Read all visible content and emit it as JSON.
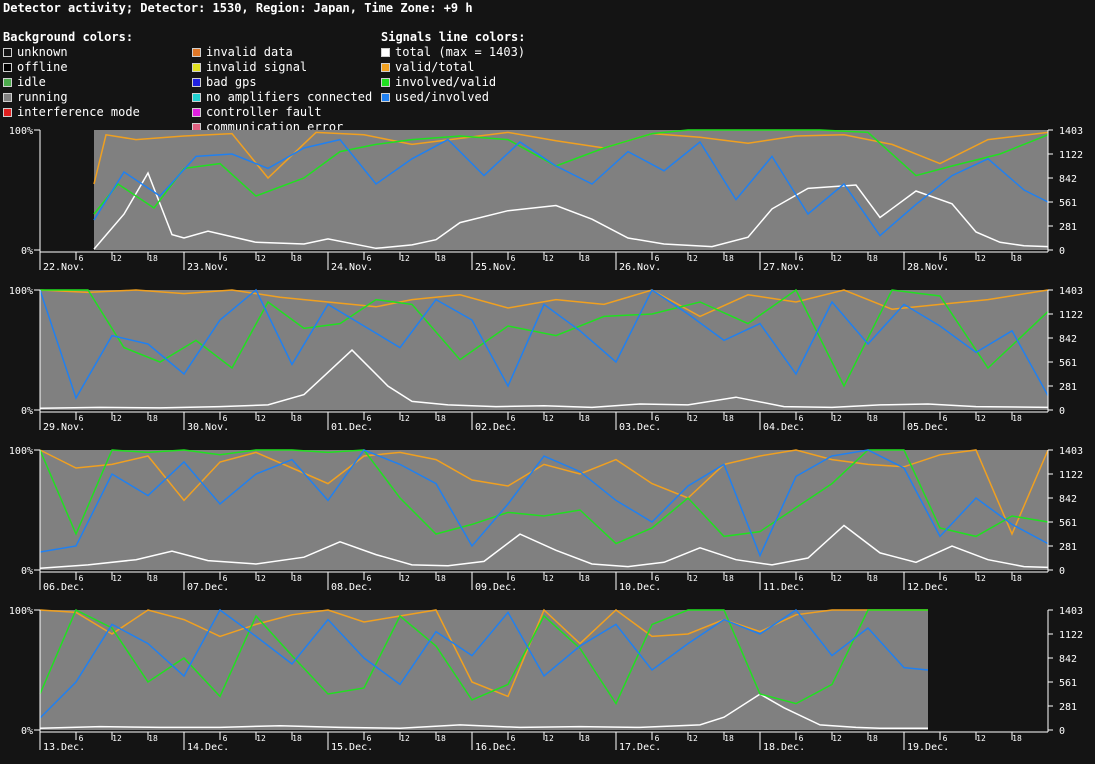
{
  "title": "Detector activity; Detector: 1530, Region: Japan, Time Zone: +9 h",
  "legends": [
    {
      "header": "Background colors:",
      "items": [
        {
          "label": "unknown",
          "color": "#141414"
        },
        {
          "label": "offline",
          "color": "#000000"
        },
        {
          "label": "idle",
          "color": "#4caa4c"
        },
        {
          "label": "running",
          "color": "#808080"
        },
        {
          "label": "interference mode",
          "color": "#e02020"
        }
      ]
    },
    {
      "header": "",
      "items": [
        {
          "label": "invalid data",
          "color": "#e07828"
        },
        {
          "label": "invalid signal",
          "color": "#e0e020"
        },
        {
          "label": "bad gps",
          "color": "#2020e0"
        },
        {
          "label": "no amplifiers connected",
          "color": "#20d0d0"
        },
        {
          "label": "controller fault",
          "color": "#e020e0"
        },
        {
          "label": "communication error",
          "color": "#e06080"
        }
      ]
    },
    {
      "header": "Signals line colors:",
      "items": [
        {
          "label": "total (max = 1403)",
          "color": "#ffffff"
        },
        {
          "label": "valid/total",
          "color": "#f0a020"
        },
        {
          "label": "involved/valid",
          "color": "#20e020"
        },
        {
          "label": "used/involved",
          "color": "#2080f0"
        }
      ]
    }
  ],
  "colors": {
    "total": "#ffffff",
    "valid": "#f0a020",
    "involved": "#20e020",
    "used": "#2080f0",
    "running": "#808080",
    "axis": "#ffffff"
  },
  "chart_data": [
    {
      "type": "line",
      "days": [
        "22.Nov.",
        "23.Nov.",
        "24.Nov.",
        "25.Nov.",
        "26.Nov.",
        "27.Nov.",
        "28.Nov."
      ],
      "hour_ticks": [
        "6",
        "12",
        "18"
      ],
      "left_ticks": [
        "100%",
        "0%"
      ],
      "right_ticks": [
        "1403",
        "1122",
        "842",
        "561",
        "281",
        "0"
      ],
      "ylim_left": [
        0,
        100
      ],
      "ylim_right": [
        0,
        1403
      ],
      "running_from_hour": 9,
      "running_to_hour": 168,
      "series": [
        {
          "key": "total",
          "hours": [
            9,
            14,
            18,
            22,
            24,
            28,
            36,
            44,
            48,
            56,
            62,
            66,
            70,
            78,
            86,
            92,
            98,
            104,
            112,
            118,
            122,
            128,
            136,
            140,
            146,
            152,
            156,
            160,
            164,
            168
          ],
          "values": [
            10,
            420,
            900,
            180,
            140,
            220,
            90,
            70,
            130,
            20,
            60,
            120,
            320,
            460,
            520,
            360,
            140,
            70,
            40,
            150,
            480,
            720,
            760,
            380,
            690,
            540,
            210,
            90,
            50,
            40
          ]
        },
        {
          "key": "valid",
          "hours": [
            9,
            11,
            16,
            24,
            32,
            38,
            46,
            54,
            62,
            70,
            78,
            86,
            94,
            102,
            110,
            118,
            126,
            134,
            142,
            150,
            158,
            168
          ],
          "values": [
            55,
            96,
            92,
            95,
            97,
            60,
            98,
            96,
            88,
            93,
            98,
            91,
            85,
            97,
            94,
            89,
            95,
            96,
            88,
            72,
            92,
            98
          ]
        },
        {
          "key": "involved",
          "hours": [
            9,
            13,
            19,
            24,
            30,
            36,
            44,
            50,
            56,
            62,
            70,
            78,
            86,
            94,
            102,
            108,
            114,
            122,
            130,
            138,
            146,
            152,
            160,
            168
          ],
          "values": [
            30,
            55,
            35,
            68,
            72,
            45,
            60,
            82,
            88,
            92,
            95,
            92,
            70,
            85,
            97,
            100,
            100,
            100,
            100,
            98,
            62,
            70,
            80,
            96
          ]
        },
        {
          "key": "used",
          "hours": [
            9,
            14,
            20,
            26,
            32,
            38,
            44,
            50,
            56,
            62,
            68,
            74,
            80,
            86,
            92,
            98,
            104,
            110,
            116,
            122,
            128,
            134,
            140,
            146,
            152,
            158,
            164,
            168
          ],
          "values": [
            25,
            65,
            45,
            78,
            80,
            68,
            85,
            92,
            55,
            76,
            92,
            62,
            90,
            70,
            55,
            82,
            66,
            90,
            42,
            78,
            30,
            55,
            12,
            38,
            62,
            76,
            50,
            40
          ]
        }
      ]
    },
    {
      "type": "line",
      "days": [
        "29.Nov.",
        "30.Nov.",
        "01.Dec.",
        "02.Dec.",
        "03.Dec.",
        "04.Dec.",
        "05.Dec."
      ],
      "hour_ticks": [
        "6",
        "12",
        "18"
      ],
      "left_ticks": [
        "100%",
        "0%"
      ],
      "right_ticks": [
        "1403",
        "1122",
        "842",
        "561",
        "281",
        "0"
      ],
      "ylim_left": [
        0,
        100
      ],
      "ylim_right": [
        0,
        1403
      ],
      "running_from_hour": 0,
      "running_to_hour": 168,
      "series": [
        {
          "key": "total",
          "hours": [
            0,
            10,
            20,
            30,
            38,
            44,
            52,
            58,
            62,
            68,
            76,
            84,
            92,
            100,
            108,
            116,
            124,
            132,
            140,
            148,
            156,
            168
          ],
          "values": [
            20,
            30,
            25,
            40,
            60,
            180,
            700,
            280,
            100,
            60,
            40,
            50,
            30,
            70,
            60,
            150,
            40,
            30,
            60,
            70,
            40,
            30
          ]
        },
        {
          "key": "valid",
          "hours": [
            0,
            8,
            16,
            24,
            32,
            40,
            48,
            56,
            62,
            70,
            78,
            86,
            94,
            102,
            110,
            118,
            126,
            134,
            142,
            150,
            158,
            168
          ],
          "values": [
            100,
            98,
            100,
            97,
            100,
            94,
            90,
            86,
            92,
            96,
            85,
            92,
            88,
            100,
            78,
            96,
            90,
            100,
            84,
            88,
            92,
            100
          ]
        },
        {
          "key": "involved",
          "hours": [
            0,
            8,
            14,
            20,
            26,
            32,
            38,
            44,
            50,
            56,
            62,
            70,
            78,
            86,
            94,
            102,
            110,
            118,
            126,
            134,
            142,
            150,
            158,
            168
          ],
          "values": [
            100,
            100,
            52,
            40,
            58,
            35,
            90,
            68,
            72,
            92,
            88,
            42,
            70,
            62,
            78,
            80,
            90,
            72,
            100,
            20,
            100,
            95,
            35,
            82
          ]
        },
        {
          "key": "used",
          "hours": [
            0,
            6,
            12,
            18,
            24,
            30,
            36,
            42,
            48,
            54,
            60,
            66,
            72,
            78,
            84,
            90,
            96,
            102,
            108,
            114,
            120,
            126,
            132,
            138,
            144,
            150,
            156,
            162,
            168
          ],
          "values": [
            100,
            10,
            62,
            55,
            30,
            75,
            100,
            38,
            88,
            70,
            52,
            92,
            75,
            20,
            88,
            66,
            40,
            100,
            80,
            58,
            72,
            30,
            90,
            55,
            88,
            70,
            48,
            66,
            12
          ]
        }
      ]
    },
    {
      "type": "line",
      "days": [
        "06.Dec.",
        "07.Dec.",
        "08.Dec.",
        "09.Dec.",
        "10.Dec.",
        "11.Dec.",
        "12.Dec."
      ],
      "hour_ticks": [
        "6",
        "12",
        "18"
      ],
      "left_ticks": [
        "100%",
        "0%"
      ],
      "right_ticks": [
        "1403",
        "1122",
        "842",
        "561",
        "281",
        "0"
      ],
      "ylim_left": [
        0,
        100
      ],
      "ylim_right": [
        0,
        1403
      ],
      "running_from_hour": 0,
      "running_to_hour": 168,
      "series": [
        {
          "key": "total",
          "hours": [
            0,
            8,
            16,
            22,
            28,
            36,
            44,
            50,
            56,
            62,
            68,
            74,
            80,
            86,
            92,
            98,
            104,
            110,
            116,
            122,
            128,
            134,
            140,
            146,
            152,
            158,
            164,
            168
          ],
          "values": [
            20,
            60,
            120,
            220,
            110,
            70,
            150,
            330,
            180,
            60,
            50,
            100,
            420,
            230,
            70,
            40,
            90,
            260,
            120,
            60,
            140,
            520,
            200,
            90,
            280,
            120,
            40,
            30
          ]
        },
        {
          "key": "valid",
          "hours": [
            0,
            6,
            12,
            18,
            24,
            30,
            36,
            42,
            48,
            54,
            60,
            66,
            72,
            78,
            84,
            90,
            96,
            102,
            108,
            114,
            120,
            126,
            132,
            138,
            144,
            150,
            156,
            162,
            168
          ],
          "values": [
            100,
            85,
            88,
            95,
            58,
            90,
            98,
            85,
            72,
            95,
            98,
            92,
            75,
            70,
            88,
            80,
            92,
            72,
            60,
            88,
            95,
            100,
            92,
            88,
            86,
            96,
            100,
            30,
            100
          ]
        },
        {
          "key": "involved",
          "hours": [
            0,
            6,
            12,
            18,
            24,
            30,
            36,
            42,
            48,
            54,
            60,
            66,
            72,
            78,
            84,
            90,
            96,
            102,
            108,
            114,
            120,
            126,
            132,
            138,
            144,
            150,
            156,
            162,
            168
          ],
          "values": [
            100,
            30,
            100,
            98,
            100,
            96,
            100,
            100,
            98,
            100,
            60,
            30,
            38,
            48,
            45,
            50,
            22,
            35,
            60,
            28,
            32,
            52,
            72,
            100,
            100,
            35,
            28,
            45,
            40
          ]
        },
        {
          "key": "used",
          "hours": [
            0,
            6,
            12,
            18,
            24,
            30,
            36,
            42,
            48,
            54,
            60,
            66,
            72,
            78,
            84,
            90,
            96,
            102,
            108,
            114,
            120,
            126,
            132,
            138,
            144,
            150,
            156,
            162,
            168
          ],
          "values": [
            15,
            20,
            80,
            62,
            90,
            55,
            80,
            92,
            58,
            100,
            88,
            72,
            20,
            55,
            95,
            82,
            58,
            40,
            70,
            88,
            12,
            78,
            95,
            100,
            85,
            28,
            60,
            38,
            22
          ]
        }
      ]
    },
    {
      "type": "line",
      "days": [
        "13.Dec.",
        "14.Dec.",
        "15.Dec.",
        "16.Dec.",
        "17.Dec.",
        "18.Dec.",
        "19.Dec."
      ],
      "hour_ticks": [
        "6",
        "12",
        "18"
      ],
      "left_ticks": [
        "100%",
        "0%"
      ],
      "right_ticks": [
        "1403",
        "1122",
        "842",
        "561",
        "281",
        "0"
      ],
      "ylim_left": [
        0,
        100
      ],
      "ylim_right": [
        0,
        1403
      ],
      "running_from_hour": 0,
      "running_to_hour": 148,
      "series": [
        {
          "key": "total",
          "hours": [
            0,
            10,
            20,
            30,
            40,
            50,
            60,
            70,
            80,
            90,
            100,
            110,
            114,
            120,
            124,
            130,
            136,
            140,
            148
          ],
          "values": [
            20,
            40,
            30,
            30,
            50,
            30,
            20,
            60,
            30,
            40,
            30,
            60,
            150,
            420,
            260,
            60,
            30,
            20,
            20
          ]
        },
        {
          "key": "valid",
          "hours": [
            0,
            6,
            12,
            18,
            24,
            30,
            36,
            42,
            48,
            54,
            60,
            66,
            72,
            78,
            84,
            90,
            96,
            102,
            108,
            114,
            120,
            126,
            132,
            138,
            148
          ],
          "values": [
            100,
            98,
            80,
            100,
            92,
            78,
            88,
            96,
            100,
            90,
            95,
            100,
            40,
            28,
            100,
            72,
            100,
            78,
            80,
            92,
            82,
            96,
            100,
            100,
            100
          ]
        },
        {
          "key": "involved",
          "hours": [
            0,
            6,
            12,
            18,
            24,
            30,
            36,
            42,
            48,
            54,
            60,
            66,
            72,
            78,
            84,
            90,
            96,
            102,
            108,
            114,
            120,
            126,
            132,
            138,
            144,
            148
          ],
          "values": [
            30,
            100,
            85,
            40,
            60,
            28,
            95,
            62,
            30,
            35,
            95,
            70,
            25,
            38,
            95,
            68,
            22,
            88,
            100,
            100,
            30,
            22,
            38,
            100,
            100,
            100
          ]
        },
        {
          "key": "used",
          "hours": [
            0,
            6,
            12,
            18,
            24,
            30,
            36,
            42,
            48,
            54,
            60,
            66,
            72,
            78,
            84,
            90,
            96,
            102,
            108,
            114,
            120,
            126,
            132,
            138,
            144,
            148
          ],
          "values": [
            10,
            40,
            88,
            72,
            45,
            100,
            78,
            55,
            92,
            60,
            38,
            82,
            62,
            98,
            45,
            70,
            88,
            50,
            72,
            92,
            80,
            100,
            62,
            85,
            52,
            50
          ]
        }
      ]
    }
  ]
}
